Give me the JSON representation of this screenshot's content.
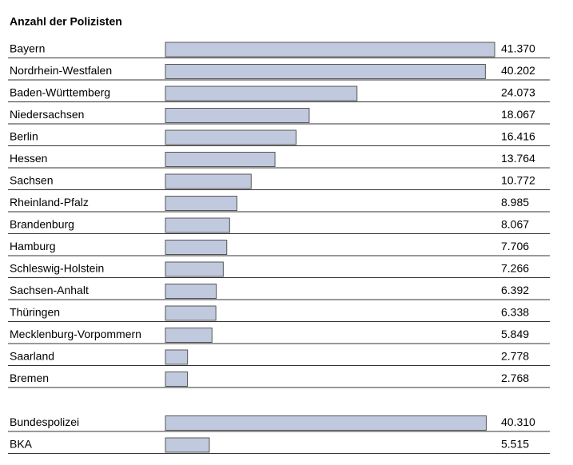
{
  "chart_data": {
    "type": "bar",
    "orientation": "horizontal",
    "title": "Anzahl der Polizisten",
    "categories": [
      "Bayern",
      "Nordrhein-Westfalen",
      "Baden-Württemberg",
      "Niedersachsen",
      "Berlin",
      "Hessen",
      "Sachsen",
      "Rheinland-Pfalz",
      "Brandenburg",
      "Hamburg",
      "Schleswig-Holstein",
      "Sachsen-Anhalt",
      "Thüringen",
      "Mecklenburg-Vorpommern",
      "Saarland",
      "Bremen",
      null,
      "Bundespolizei",
      "BKA"
    ],
    "values": [
      41370,
      40202,
      24073,
      18067,
      16416,
      13764,
      10772,
      8985,
      8067,
      7706,
      7266,
      6392,
      6338,
      5849,
      2778,
      2768,
      null,
      40310,
      5515
    ],
    "value_labels": [
      "41.370",
      "40.202",
      "24.073",
      "18.067",
      "16.416",
      "13.764",
      "10.772",
      "8.985",
      "8.067",
      "7.706",
      "7.266",
      "6.392",
      "6.338",
      "5.849",
      "2.778",
      "2.768",
      null,
      "40.310",
      "5.515"
    ],
    "color": "#c0c9dd"
  }
}
